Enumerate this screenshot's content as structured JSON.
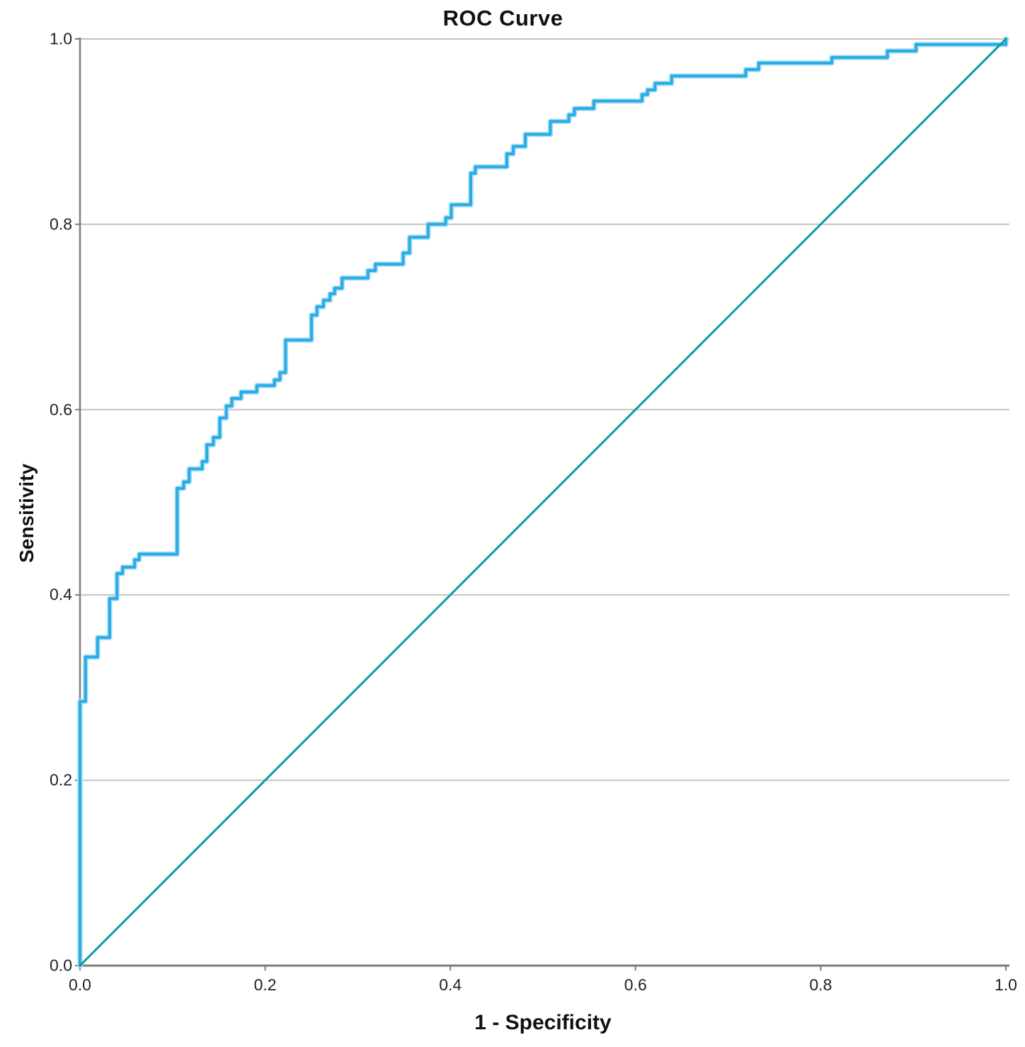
{
  "chart_data": {
    "type": "line",
    "title": "ROC Curve",
    "xlabel": "1 - Specificity",
    "ylabel": "Sensitivity",
    "xlim": [
      0.0,
      1.0
    ],
    "ylim": [
      0.0,
      1.0
    ],
    "xticks": [
      "0.0",
      "0.2",
      "0.4",
      "0.6",
      "0.8",
      "1.0"
    ],
    "yticks": [
      "0.0",
      "0.2",
      "0.4",
      "0.6",
      "0.8",
      "1.0"
    ],
    "grid": "horizontal-only",
    "gridline_color": "#c2c2c2",
    "axis_color": "#7d7d7d",
    "legend_position": "none",
    "series": [
      {
        "name": "ROC curve",
        "color": "#29ace4",
        "halo_color": "#aadef7",
        "line_width": 4,
        "step": true,
        "points": [
          [
            0.0,
            0.0
          ],
          [
            0.0,
            0.285
          ],
          [
            0.006,
            0.285
          ],
          [
            0.006,
            0.333
          ],
          [
            0.019,
            0.333
          ],
          [
            0.019,
            0.354
          ],
          [
            0.032,
            0.354
          ],
          [
            0.032,
            0.396
          ],
          [
            0.04,
            0.396
          ],
          [
            0.04,
            0.423
          ],
          [
            0.046,
            0.423
          ],
          [
            0.046,
            0.43
          ],
          [
            0.059,
            0.43
          ],
          [
            0.059,
            0.438
          ],
          [
            0.064,
            0.438
          ],
          [
            0.064,
            0.444
          ],
          [
            0.105,
            0.444
          ],
          [
            0.105,
            0.515
          ],
          [
            0.112,
            0.515
          ],
          [
            0.112,
            0.522
          ],
          [
            0.118,
            0.522
          ],
          [
            0.118,
            0.536
          ],
          [
            0.132,
            0.536
          ],
          [
            0.132,
            0.544
          ],
          [
            0.137,
            0.544
          ],
          [
            0.137,
            0.562
          ],
          [
            0.144,
            0.562
          ],
          [
            0.144,
            0.57
          ],
          [
            0.151,
            0.57
          ],
          [
            0.151,
            0.591
          ],
          [
            0.158,
            0.591
          ],
          [
            0.158,
            0.604
          ],
          [
            0.164,
            0.604
          ],
          [
            0.164,
            0.612
          ],
          [
            0.174,
            0.612
          ],
          [
            0.174,
            0.619
          ],
          [
            0.191,
            0.619
          ],
          [
            0.191,
            0.626
          ],
          [
            0.21,
            0.626
          ],
          [
            0.21,
            0.632
          ],
          [
            0.216,
            0.632
          ],
          [
            0.216,
            0.64
          ],
          [
            0.222,
            0.64
          ],
          [
            0.222,
            0.675
          ],
          [
            0.25,
            0.675
          ],
          [
            0.25,
            0.702
          ],
          [
            0.256,
            0.702
          ],
          [
            0.256,
            0.711
          ],
          [
            0.263,
            0.711
          ],
          [
            0.263,
            0.718
          ],
          [
            0.27,
            0.718
          ],
          [
            0.27,
            0.725
          ],
          [
            0.275,
            0.725
          ],
          [
            0.275,
            0.731
          ],
          [
            0.283,
            0.731
          ],
          [
            0.283,
            0.742
          ],
          [
            0.311,
            0.742
          ],
          [
            0.311,
            0.75
          ],
          [
            0.319,
            0.75
          ],
          [
            0.319,
            0.757
          ],
          [
            0.349,
            0.757
          ],
          [
            0.349,
            0.769
          ],
          [
            0.356,
            0.769
          ],
          [
            0.356,
            0.786
          ],
          [
            0.376,
            0.786
          ],
          [
            0.376,
            0.8
          ],
          [
            0.395,
            0.8
          ],
          [
            0.395,
            0.807
          ],
          [
            0.401,
            0.807
          ],
          [
            0.401,
            0.821
          ],
          [
            0.422,
            0.821
          ],
          [
            0.422,
            0.855
          ],
          [
            0.427,
            0.855
          ],
          [
            0.427,
            0.862
          ],
          [
            0.461,
            0.862
          ],
          [
            0.461,
            0.876
          ],
          [
            0.468,
            0.876
          ],
          [
            0.468,
            0.884
          ],
          [
            0.481,
            0.884
          ],
          [
            0.481,
            0.897
          ],
          [
            0.508,
            0.897
          ],
          [
            0.508,
            0.911
          ],
          [
            0.528,
            0.911
          ],
          [
            0.528,
            0.918
          ],
          [
            0.534,
            0.918
          ],
          [
            0.534,
            0.925
          ],
          [
            0.555,
            0.925
          ],
          [
            0.555,
            0.933
          ],
          [
            0.607,
            0.933
          ],
          [
            0.607,
            0.94
          ],
          [
            0.613,
            0.94
          ],
          [
            0.613,
            0.945
          ],
          [
            0.621,
            0.945
          ],
          [
            0.621,
            0.952
          ],
          [
            0.639,
            0.952
          ],
          [
            0.639,
            0.96
          ],
          [
            0.719,
            0.96
          ],
          [
            0.719,
            0.967
          ],
          [
            0.733,
            0.967
          ],
          [
            0.733,
            0.974
          ],
          [
            0.812,
            0.974
          ],
          [
            0.812,
            0.98
          ],
          [
            0.872,
            0.98
          ],
          [
            0.872,
            0.987
          ],
          [
            0.903,
            0.987
          ],
          [
            0.903,
            0.994
          ],
          [
            1.0,
            0.994
          ],
          [
            1.0,
            1.0
          ]
        ]
      },
      {
        "name": "Reference line",
        "color": "#0e9a9f",
        "line_width": 3,
        "step": false,
        "points": [
          [
            0.0,
            0.0
          ],
          [
            1.0,
            1.0
          ]
        ]
      }
    ]
  }
}
